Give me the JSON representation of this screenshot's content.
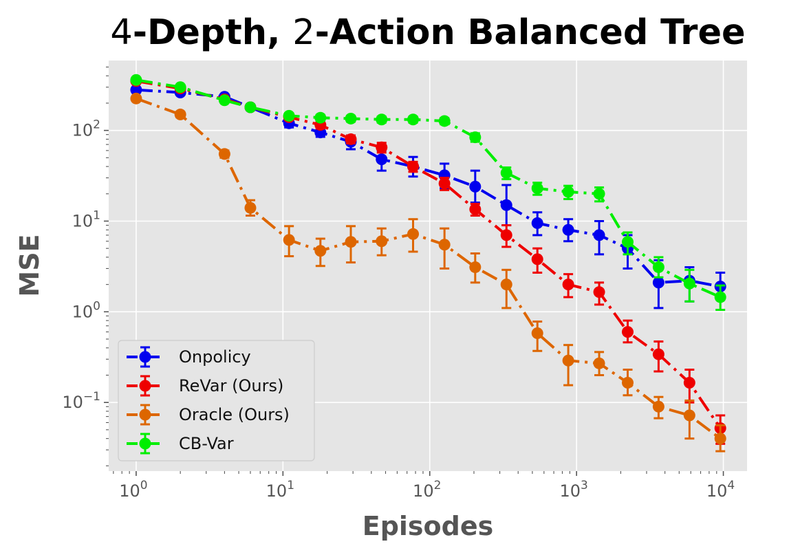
{
  "chart_data": {
    "type": "line",
    "title_parts": [
      {
        "text": "4",
        "bold": false
      },
      {
        "text": "-Depth, ",
        "bold": true
      },
      {
        "text": "2",
        "bold": false
      },
      {
        "text": "-Action Balanced Tree",
        "bold": true
      }
    ],
    "xlabel": "Episodes",
    "ylabel": "MSE",
    "xscale": "log",
    "yscale": "log",
    "xlim": [
      0.65,
      14500
    ],
    "ylim": [
      0.0175,
      590
    ],
    "xticks": [
      {
        "value": 1,
        "base": "10",
        "exp": "0"
      },
      {
        "value": 10,
        "base": "10",
        "exp": "1"
      },
      {
        "value": 100,
        "base": "10",
        "exp": "2"
      },
      {
        "value": 1000,
        "base": "10",
        "exp": "3"
      },
      {
        "value": 10000,
        "base": "10",
        "exp": "4"
      }
    ],
    "yticks": [
      {
        "value": 0.1,
        "base": "10",
        "exp": "−1"
      },
      {
        "value": 1,
        "base": "10",
        "exp": "0"
      },
      {
        "value": 10,
        "base": "10",
        "exp": "1"
      },
      {
        "value": 100,
        "base": "10",
        "exp": "2"
      }
    ],
    "grid": true,
    "legend_position": "lower-left",
    "series": [
      {
        "name": "Onpolicy",
        "color": "#0000ee",
        "x": [
          1,
          2,
          4,
          6,
          11,
          18,
          29,
          47,
          77,
          126,
          204,
          333,
          541,
          878,
          1426,
          2230,
          3620,
          5880,
          9540
        ],
        "y": [
          280,
          262,
          235,
          180,
          120,
          95,
          75,
          48,
          40,
          32,
          24,
          15,
          9.5,
          8,
          7,
          5,
          2.1,
          2.2,
          1.9
        ],
        "err_low": [
          265,
          250,
          222,
          168,
          108,
          85,
          62,
          36,
          31,
          23,
          16,
          9,
          7,
          6,
          4.3,
          3,
          1.1,
          1.3,
          1.5
        ],
        "err_high": [
          295,
          275,
          248,
          193,
          132,
          105,
          88,
          60,
          51,
          43,
          36,
          25,
          12.5,
          10.5,
          10,
          7,
          3.7,
          3.1,
          2.7
        ]
      },
      {
        "name": "ReVar (Ours)",
        "color": "#ee0000",
        "x": [
          1,
          2,
          4,
          6,
          11,
          18,
          29,
          47,
          77,
          126,
          204,
          333,
          541,
          878,
          1426,
          2230,
          3620,
          5880,
          9540
        ],
        "y": [
          350,
          290,
          220,
          180,
          140,
          115,
          80,
          65,
          40,
          26,
          13.5,
          7,
          3.8,
          2,
          1.65,
          0.6,
          0.34,
          0.165,
          0.052
        ],
        "err_low": [
          335,
          275,
          210,
          170,
          130,
          105,
          72,
          57,
          35,
          22,
          11.5,
          5.2,
          2.7,
          1.45,
          1.2,
          0.46,
          0.22,
          0.1,
          0.035
        ],
        "err_high": [
          365,
          305,
          230,
          190,
          150,
          125,
          88,
          73,
          45,
          30,
          15.5,
          9,
          5,
          2.6,
          2.1,
          0.8,
          0.47,
          0.23,
          0.072
        ]
      },
      {
        "name": "Oracle (Ours)",
        "color": "#dd6600",
        "x": [
          1,
          2,
          4,
          6,
          11,
          18,
          29,
          47,
          77,
          126,
          204,
          333,
          541,
          878,
          1426,
          2230,
          3620,
          5880,
          9540
        ],
        "y": [
          225,
          150,
          55,
          14,
          6.2,
          4.7,
          5.9,
          6,
          7.2,
          5.5,
          3.1,
          2,
          0.58,
          0.29,
          0.27,
          0.165,
          0.09,
          0.072,
          0.04
        ],
        "err_low": [
          212,
          140,
          50,
          11.5,
          4.1,
          3.2,
          3.5,
          4.2,
          4.6,
          3,
          2.1,
          1.1,
          0.37,
          0.155,
          0.2,
          0.12,
          0.067,
          0.04,
          0.029
        ],
        "err_high": [
          238,
          160,
          60,
          17,
          8.8,
          6.4,
          8.8,
          8.3,
          10.5,
          8.3,
          4.4,
          2.9,
          0.78,
          0.43,
          0.36,
          0.23,
          0.115,
          0.105,
          0.056
        ]
      },
      {
        "name": "CB-Var",
        "color": "#00ee00",
        "x": [
          1,
          2,
          4,
          6,
          11,
          18,
          29,
          47,
          77,
          126,
          204,
          333,
          541,
          878,
          1426,
          2230,
          3620,
          5880,
          9540
        ],
        "y": [
          360,
          300,
          215,
          180,
          145,
          138,
          135,
          132,
          132,
          127,
          84,
          34,
          23,
          21,
          20,
          5.9,
          3.1,
          2.05,
          1.45
        ],
        "err_low": [
          345,
          285,
          205,
          170,
          135,
          128,
          125,
          122,
          122,
          117,
          75,
          29,
          19.5,
          17.5,
          16.5,
          4.3,
          2.4,
          1.3,
          1.05
        ],
        "err_high": [
          375,
          315,
          225,
          190,
          155,
          148,
          145,
          142,
          142,
          137,
          93,
          39,
          26.5,
          24.5,
          23.5,
          7.5,
          4,
          2.9,
          1.95
        ]
      }
    ]
  }
}
